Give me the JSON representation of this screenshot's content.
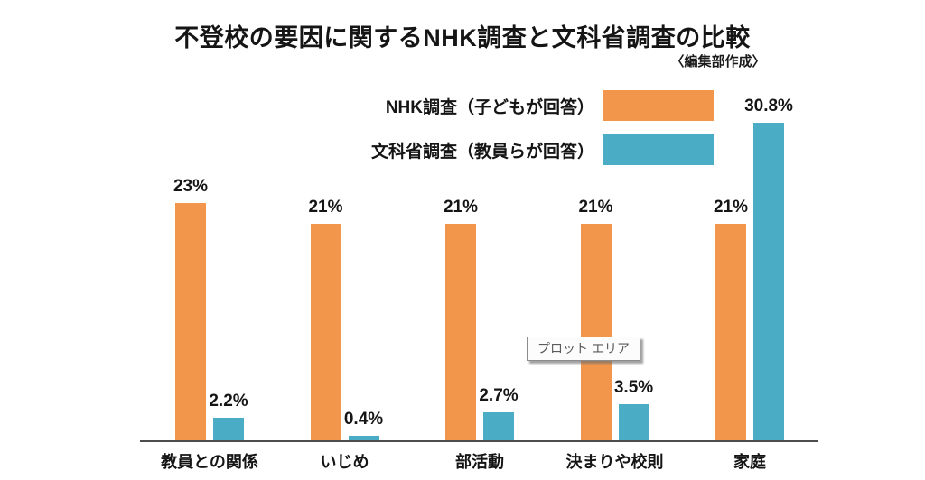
{
  "chart_data": {
    "type": "bar",
    "title": "不登校の要因に関するNHK調査と文科省調査の比較",
    "subtitle": "〈編集部作成〉",
    "categories": [
      "教員との関係",
      "いじめ",
      "部活動",
      "決まりや校則",
      "家庭"
    ],
    "series": [
      {
        "name": "NHK調査（子どもが回答）",
        "key": "nhk",
        "color": "#F2964B",
        "values": [
          23,
          21,
          21,
          21,
          21
        ],
        "labels": [
          "23%",
          "21%",
          "21%",
          "21%",
          "21%"
        ]
      },
      {
        "name": "文科省調査（教員らが回答）",
        "key": "mext",
        "color": "#4BACC6",
        "values": [
          2.2,
          0.4,
          2.7,
          3.5,
          30.8
        ],
        "labels": [
          "2.2%",
          "0.4%",
          "2.7%",
          "3.5%",
          "30.8%"
        ]
      }
    ],
    "ylim": [
      0,
      32
    ],
    "grid": false,
    "legend_position": "top-right",
    "axis_line_color": "#4d4d4d",
    "plot_area_tooltip": "プロット エリア"
  }
}
